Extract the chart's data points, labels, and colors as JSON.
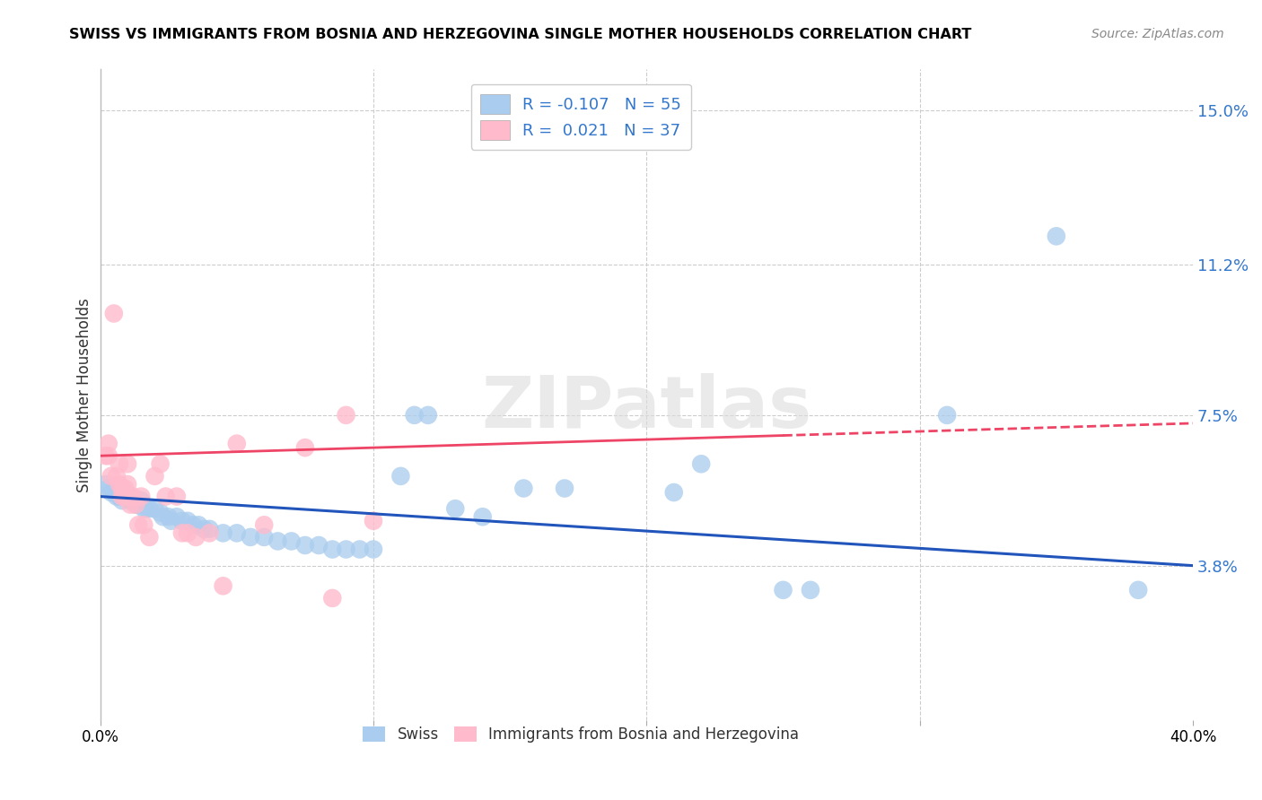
{
  "title": "SWISS VS IMMIGRANTS FROM BOSNIA AND HERZEGOVINA SINGLE MOTHER HOUSEHOLDS CORRELATION CHART",
  "source": "Source: ZipAtlas.com",
  "ylabel": "Single Mother Households",
  "xlim": [
    0.0,
    0.4
  ],
  "ylim": [
    0.0,
    0.16
  ],
  "yticks": [
    0.038,
    0.075,
    0.112,
    0.15
  ],
  "ytick_labels": [
    "3.8%",
    "7.5%",
    "11.2%",
    "15.0%"
  ],
  "legend_bottom": [
    "Swiss",
    "Immigrants from Bosnia and Herzegovina"
  ],
  "swiss_color": "#aaccee",
  "bosnia_color": "#ffbbcc",
  "swiss_line_color": "#2255bb",
  "bosnia_line_color": "#ee4466",
  "watermark": "ZIPatlas",
  "swiss_R": -0.107,
  "swiss_N": 55,
  "bosnia_R": 0.021,
  "bosnia_N": 37,
  "swiss_points": [
    [
      0.002,
      0.058
    ],
    [
      0.003,
      0.057
    ],
    [
      0.004,
      0.056
    ],
    [
      0.005,
      0.056
    ],
    [
      0.006,
      0.055
    ],
    [
      0.007,
      0.055
    ],
    [
      0.008,
      0.054
    ],
    [
      0.009,
      0.055
    ],
    [
      0.01,
      0.055
    ],
    [
      0.011,
      0.054
    ],
    [
      0.012,
      0.054
    ],
    [
      0.013,
      0.053
    ],
    [
      0.014,
      0.053
    ],
    [
      0.015,
      0.054
    ],
    [
      0.016,
      0.052
    ],
    [
      0.017,
      0.052
    ],
    [
      0.018,
      0.052
    ],
    [
      0.02,
      0.052
    ],
    [
      0.022,
      0.051
    ],
    [
      0.023,
      0.05
    ],
    [
      0.025,
      0.05
    ],
    [
      0.026,
      0.049
    ],
    [
      0.028,
      0.05
    ],
    [
      0.03,
      0.049
    ],
    [
      0.032,
      0.049
    ],
    [
      0.034,
      0.048
    ],
    [
      0.036,
      0.048
    ],
    [
      0.038,
      0.047
    ],
    [
      0.04,
      0.047
    ],
    [
      0.045,
      0.046
    ],
    [
      0.05,
      0.046
    ],
    [
      0.055,
      0.045
    ],
    [
      0.06,
      0.045
    ],
    [
      0.065,
      0.044
    ],
    [
      0.07,
      0.044
    ],
    [
      0.075,
      0.043
    ],
    [
      0.08,
      0.043
    ],
    [
      0.085,
      0.042
    ],
    [
      0.09,
      0.042
    ],
    [
      0.095,
      0.042
    ],
    [
      0.1,
      0.042
    ],
    [
      0.11,
      0.06
    ],
    [
      0.115,
      0.075
    ],
    [
      0.12,
      0.075
    ],
    [
      0.13,
      0.052
    ],
    [
      0.14,
      0.05
    ],
    [
      0.155,
      0.057
    ],
    [
      0.17,
      0.057
    ],
    [
      0.21,
      0.056
    ],
    [
      0.22,
      0.063
    ],
    [
      0.25,
      0.032
    ],
    [
      0.26,
      0.032
    ],
    [
      0.31,
      0.075
    ],
    [
      0.35,
      0.119
    ],
    [
      0.38,
      0.032
    ]
  ],
  "bosnia_points": [
    [
      0.002,
      0.065
    ],
    [
      0.003,
      0.065
    ],
    [
      0.003,
      0.068
    ],
    [
      0.004,
      0.06
    ],
    [
      0.005,
      0.1
    ],
    [
      0.006,
      0.06
    ],
    [
      0.007,
      0.063
    ],
    [
      0.007,
      0.058
    ],
    [
      0.008,
      0.057
    ],
    [
      0.008,
      0.055
    ],
    [
      0.009,
      0.057
    ],
    [
      0.009,
      0.055
    ],
    [
      0.01,
      0.063
    ],
    [
      0.01,
      0.058
    ],
    [
      0.011,
      0.055
    ],
    [
      0.011,
      0.053
    ],
    [
      0.012,
      0.055
    ],
    [
      0.013,
      0.053
    ],
    [
      0.014,
      0.048
    ],
    [
      0.015,
      0.055
    ],
    [
      0.016,
      0.048
    ],
    [
      0.018,
      0.045
    ],
    [
      0.02,
      0.06
    ],
    [
      0.022,
      0.063
    ],
    [
      0.024,
      0.055
    ],
    [
      0.028,
      0.055
    ],
    [
      0.03,
      0.046
    ],
    [
      0.032,
      0.046
    ],
    [
      0.035,
      0.045
    ],
    [
      0.04,
      0.046
    ],
    [
      0.045,
      0.033
    ],
    [
      0.05,
      0.068
    ],
    [
      0.06,
      0.048
    ],
    [
      0.075,
      0.067
    ],
    [
      0.085,
      0.03
    ],
    [
      0.09,
      0.075
    ],
    [
      0.1,
      0.049
    ]
  ]
}
